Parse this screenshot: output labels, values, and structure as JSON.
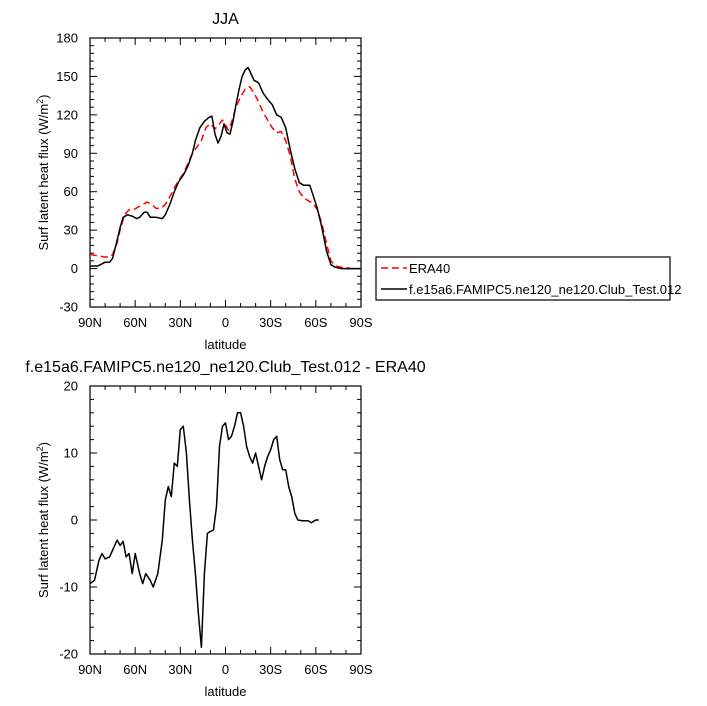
{
  "chart_data": [
    {
      "type": "line",
      "title": "JJA",
      "xlabel": "latitude",
      "ylabel_main": "Surf latent heat flux (W/m",
      "ylabel_sup": "2",
      "ylabel_close": ")",
      "xlim": [
        90,
        -90
      ],
      "ylim": [
        -30,
        180
      ],
      "xticks": [
        90,
        60,
        30,
        0,
        -30,
        -60,
        -90
      ],
      "xticklabels": [
        "90N",
        "60N",
        "30N",
        "0",
        "30S",
        "60S",
        "90S"
      ],
      "yticks": [
        -30,
        0,
        30,
        60,
        90,
        120,
        150,
        180
      ],
      "yticklabels": [
        "-30",
        "0",
        "30",
        "60",
        "90",
        "120",
        "150",
        "180"
      ],
      "legend_position": "right",
      "series": [
        {
          "name": "ERA40",
          "color": "#ff0000",
          "dash": "dashed",
          "points": [
            [
              90,
              11
            ],
            [
              85,
              10
            ],
            [
              80,
              9
            ],
            [
              77,
              9
            ],
            [
              75,
              11
            ],
            [
              72,
              20
            ],
            [
              70,
              30
            ],
            [
              67,
              42
            ],
            [
              64,
              46
            ],
            [
              61,
              46
            ],
            [
              58,
              48
            ],
            [
              55,
              50
            ],
            [
              52,
              52
            ],
            [
              49,
              50
            ],
            [
              46,
              47
            ],
            [
              43,
              47
            ],
            [
              40,
              50
            ],
            [
              37,
              56
            ],
            [
              34,
              63
            ],
            [
              31,
              69
            ],
            [
              28,
              74
            ],
            [
              25,
              82
            ],
            [
              22,
              90
            ],
            [
              19,
              95
            ],
            [
              16,
              100
            ],
            [
              13,
              110
            ],
            [
              10,
              113
            ],
            [
              7,
              109
            ],
            [
              4,
              113
            ],
            [
              2,
              116
            ],
            [
              0,
              112
            ],
            [
              -2,
              108
            ],
            [
              -4,
              114
            ],
            [
              -7,
              126
            ],
            [
              -10,
              134
            ],
            [
              -13,
              140
            ],
            [
              -16,
              142
            ],
            [
              -19,
              137
            ],
            [
              -22,
              130
            ],
            [
              -25,
              122
            ],
            [
              -28,
              116
            ],
            [
              -31,
              110
            ],
            [
              -34,
              106
            ],
            [
              -37,
              107
            ],
            [
              -40,
              100
            ],
            [
              -43,
              88
            ],
            [
              -46,
              70
            ],
            [
              -49,
              60
            ],
            [
              -52,
              55
            ],
            [
              -55,
              53
            ],
            [
              -58,
              51
            ],
            [
              -61,
              46
            ],
            [
              -64,
              35
            ],
            [
              -67,
              20
            ],
            [
              -70,
              6
            ],
            [
              -73,
              2
            ],
            [
              -77,
              1
            ],
            [
              -80,
              1
            ],
            [
              -83,
              0
            ],
            [
              -87,
              0
            ],
            [
              -90,
              0
            ]
          ]
        },
        {
          "name": "f.e15a6.FAMIPC5.ne120_ne120.Club_Test.012",
          "color": "#000000",
          "dash": "solid",
          "points": [
            [
              90,
              2
            ],
            [
              85,
              2
            ],
            [
              83,
              3
            ],
            [
              80,
              5
            ],
            [
              77,
              5
            ],
            [
              75,
              8
            ],
            [
              72,
              22
            ],
            [
              70,
              32
            ],
            [
              68,
              40
            ],
            [
              65,
              42
            ],
            [
              62,
              41
            ],
            [
              59,
              39
            ],
            [
              57,
              40
            ],
            [
              54,
              44
            ],
            [
              52,
              44
            ],
            [
              50,
              40
            ],
            [
              46,
              40
            ],
            [
              42,
              39
            ],
            [
              40,
              42
            ],
            [
              37,
              50
            ],
            [
              34,
              60
            ],
            [
              31,
              68
            ],
            [
              28,
              73
            ],
            [
              25,
              80
            ],
            [
              22,
              90
            ],
            [
              20,
              100
            ],
            [
              17,
              110
            ],
            [
              14,
              115
            ],
            [
              11,
              118
            ],
            [
              9,
              119
            ],
            [
              7,
              105
            ],
            [
              5,
              98
            ],
            [
              3,
              103
            ],
            [
              1,
              113
            ],
            [
              -1,
              106
            ],
            [
              -3,
              105
            ],
            [
              -5,
              115
            ],
            [
              -7,
              128
            ],
            [
              -9,
              140
            ],
            [
              -11,
              150
            ],
            [
              -13,
              155
            ],
            [
              -15,
              157
            ],
            [
              -17,
              152
            ],
            [
              -19,
              147
            ],
            [
              -22,
              145
            ],
            [
              -25,
              137
            ],
            [
              -28,
              132
            ],
            [
              -31,
              128
            ],
            [
              -34,
              120
            ],
            [
              -37,
              118
            ],
            [
              -40,
              110
            ],
            [
              -43,
              93
            ],
            [
              -46,
              78
            ],
            [
              -49,
              67
            ],
            [
              -52,
              65
            ],
            [
              -56,
              65
            ],
            [
              -58,
              58
            ],
            [
              -61,
              47
            ],
            [
              -64,
              32
            ],
            [
              -67,
              14
            ],
            [
              -70,
              3
            ],
            [
              -73,
              1
            ],
            [
              -77,
              0
            ],
            [
              -80,
              0
            ],
            [
              -83,
              0
            ],
            [
              -87,
              0
            ],
            [
              -90,
              0
            ]
          ]
        }
      ]
    },
    {
      "type": "line",
      "title": "f.e15a6.FAMIPC5.ne120_ne120.Club_Test.012 - ERA40",
      "xlabel": "latitude",
      "ylabel_main": "Surf latent heat flux (W/m",
      "ylabel_sup": "2",
      "ylabel_close": ")",
      "xlim": [
        90,
        -90
      ],
      "ylim": [
        -20,
        20
      ],
      "xticks": [
        90,
        60,
        30,
        0,
        -30,
        -60,
        -90
      ],
      "xticklabels": [
        "90N",
        "60N",
        "30N",
        "0",
        "30S",
        "60S",
        "90S"
      ],
      "yticks": [
        -20,
        -10,
        0,
        10,
        20
      ],
      "yticklabels": [
        "-20",
        "-10",
        "0",
        "10",
        "20"
      ],
      "series": [
        {
          "name": "",
          "color": "#000000",
          "dash": "solid",
          "points": [
            [
              90,
              -9.5
            ],
            [
              87,
              -9
            ],
            [
              84,
              -6
            ],
            [
              82,
              -5
            ],
            [
              80,
              -5.8
            ],
            [
              77,
              -5.5
            ],
            [
              74,
              -4
            ],
            [
              72,
              -3
            ],
            [
              70,
              -3.8
            ],
            [
              68,
              -3.2
            ],
            [
              66,
              -5.5
            ],
            [
              64,
              -5
            ],
            [
              62,
              -8
            ],
            [
              60,
              -5
            ],
            [
              57,
              -8
            ],
            [
              55,
              -9.5
            ],
            [
              53,
              -8
            ],
            [
              50,
              -9
            ],
            [
              48,
              -10
            ],
            [
              45,
              -8
            ],
            [
              42,
              -3
            ],
            [
              40,
              3
            ],
            [
              38,
              5
            ],
            [
              36,
              3.5
            ],
            [
              34,
              8.5
            ],
            [
              32,
              8
            ],
            [
              30,
              13.5
            ],
            [
              28,
              14
            ],
            [
              26,
              10
            ],
            [
              24,
              3
            ],
            [
              22,
              -3
            ],
            [
              20,
              -8
            ],
            [
              18,
              -14
            ],
            [
              16,
              -19
            ],
            [
              14,
              -8
            ],
            [
              12,
              -2
            ],
            [
              10,
              -1.7
            ],
            [
              8,
              -1.5
            ],
            [
              6,
              2
            ],
            [
              4,
              11
            ],
            [
              2,
              14
            ],
            [
              0,
              14.5
            ],
            [
              -2,
              12
            ],
            [
              -4,
              12.5
            ],
            [
              -6,
              14
            ],
            [
              -8,
              16
            ],
            [
              -10,
              16
            ],
            [
              -12,
              14
            ],
            [
              -14,
              11
            ],
            [
              -16,
              9.5
            ],
            [
              -18,
              8.5
            ],
            [
              -20,
              10
            ],
            [
              -22,
              8
            ],
            [
              -24,
              6
            ],
            [
              -26,
              8
            ],
            [
              -28,
              9.5
            ],
            [
              -30,
              10.5
            ],
            [
              -32,
              12
            ],
            [
              -34,
              12.5
            ],
            [
              -36,
              9
            ],
            [
              -38,
              7.5
            ],
            [
              -40,
              7.5
            ],
            [
              -42,
              5
            ],
            [
              -44,
              3.5
            ],
            [
              -46,
              1
            ],
            [
              -48,
              0
            ],
            [
              -51,
              -0.1
            ],
            [
              -55,
              -0.1
            ],
            [
              -57,
              -0.4
            ],
            [
              -60,
              0
            ],
            [
              -62,
              0
            ]
          ]
        }
      ]
    }
  ]
}
